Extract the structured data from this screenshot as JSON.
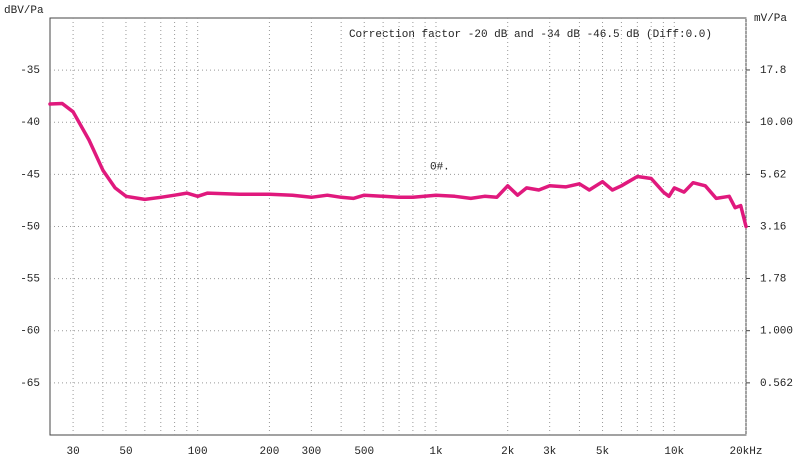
{
  "chart_data": {
    "type": "line",
    "annotation": "Correction factor -20 dB and -34 dB -46.5 dB (Diff:0.0)",
    "curve_label": "0#.",
    "ylabel": "dBV/Pa",
    "y2label": "mV/Pa",
    "xscale": "log",
    "y2scale": "log",
    "grid": true,
    "xlim": [
      24,
      20000
    ],
    "ylim": [
      -70,
      -30
    ],
    "y2lim": [
      0.316,
      31.6
    ],
    "xticks": [
      30,
      50,
      100,
      200,
      300,
      500,
      {
        "value": 1000,
        "label": "1k"
      },
      {
        "value": 2000,
        "label": "2k"
      },
      {
        "value": 3000,
        "label": "3k"
      },
      {
        "value": 5000,
        "label": "5k"
      },
      {
        "value": 10000,
        "label": "10k"
      },
      {
        "value": 20000,
        "label": "20kHz"
      }
    ],
    "xminorticks": [
      40,
      60,
      70,
      80,
      90,
      400,
      600,
      700,
      800,
      900,
      4000,
      6000,
      7000,
      8000,
      9000
    ],
    "yticks": [
      -35,
      -40,
      -45,
      -50,
      -55,
      -60,
      -65
    ],
    "y2ticks": [
      17.8,
      {
        "value": 10,
        "label": "10.00"
      },
      5.62,
      3.16,
      1.78,
      {
        "value": 1,
        "label": "1.000"
      },
      0.562
    ],
    "x": [
      24,
      27,
      30,
      35,
      40,
      45,
      50,
      60,
      70,
      80,
      90,
      100,
      110,
      150,
      200,
      250,
      300,
      350,
      400,
      450,
      500,
      600,
      700,
      800,
      1000,
      1200,
      1400,
      1600,
      1800,
      2000,
      2200,
      2400,
      2700,
      3000,
      3500,
      4000,
      4400,
      5000,
      5500,
      6000,
      7000,
      8000,
      9000,
      9500,
      10000,
      11000,
      12000,
      13500,
      15000,
      17000,
      18000,
      19000,
      20000
    ],
    "series": [
      {
        "name": "0#.",
        "color": "#e0197d",
        "values": [
          -38.25,
          -38.2,
          -39.0,
          -41.7,
          -44.6,
          -46.3,
          -47.1,
          -47.4,
          -47.2,
          -47.0,
          -46.8,
          -47.1,
          -46.8,
          -46.9,
          -46.9,
          -47.0,
          -47.2,
          -47.0,
          -47.2,
          -47.3,
          -47.0,
          -47.1,
          -47.2,
          -47.2,
          -47.0,
          -47.1,
          -47.3,
          -47.1,
          -47.2,
          -46.1,
          -47.0,
          -46.3,
          -46.5,
          -46.1,
          -46.2,
          -45.9,
          -46.5,
          -45.7,
          -46.5,
          -46.1,
          -45.2,
          -45.4,
          -46.7,
          -47.1,
          -46.3,
          -46.7,
          -45.8,
          -46.1,
          -47.3,
          -47.1,
          -48.2,
          -48.0,
          -50.0
        ]
      }
    ]
  }
}
